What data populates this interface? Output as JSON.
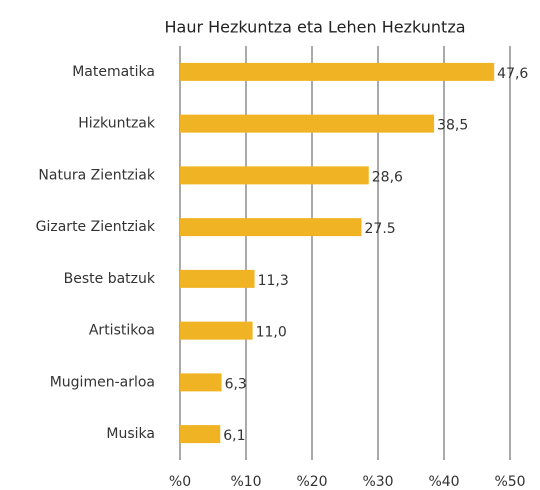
{
  "chart_data": {
    "type": "bar",
    "orientation": "horizontal",
    "title": "Haur Hezkuntza eta Lehen Hezkuntza",
    "categories": [
      "Matematika",
      "Hizkuntzak",
      "Natura Zientziak",
      "Gizarte Zientziak",
      "Beste batzuk",
      "Artistikoa",
      "Mugimen-arloa",
      "Musika"
    ],
    "values": [
      47.6,
      38.5,
      28.6,
      27.5,
      11.3,
      11.0,
      6.3,
      6.1
    ],
    "value_labels": [
      "47,6",
      "38,5",
      "28,6",
      "27.5",
      "11,3",
      "11,0",
      "6,3",
      "6,1"
    ],
    "color": "#f0b323",
    "xlim": [
      0,
      50
    ],
    "xticks": [
      {
        "value": 0,
        "label": "%0"
      },
      {
        "value": 10,
        "label": "%10"
      },
      {
        "value": 20,
        "label": "%20"
      },
      {
        "value": 30,
        "label": "%30"
      },
      {
        "value": 40,
        "label": "%40"
      },
      {
        "value": 50,
        "label": "%50"
      }
    ],
    "grid": true
  }
}
